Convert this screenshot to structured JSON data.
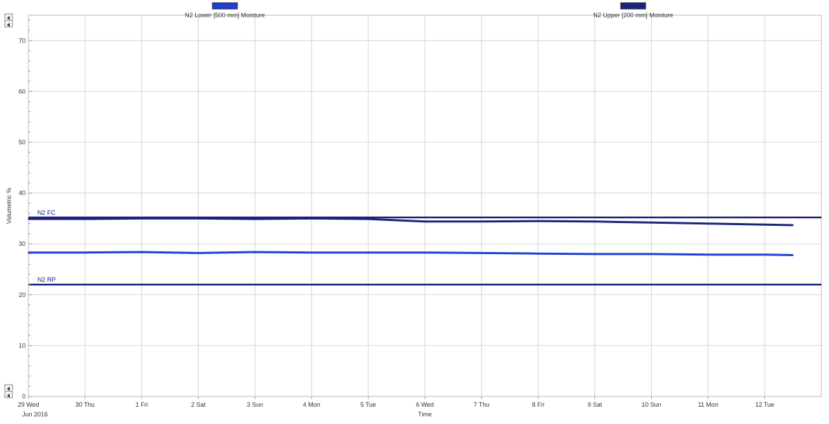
{
  "chart_data": {
    "type": "line",
    "title": "",
    "xlabel": "Time",
    "ylabel": "Volumetric %",
    "x_date_sublabel": "Jun 2016",
    "ylim": [
      0,
      75
    ],
    "yticks": [
      0,
      10,
      20,
      30,
      40,
      50,
      60,
      70
    ],
    "xlim": [
      "2016-06-29",
      "2016-07-13"
    ],
    "x_ticks": [
      {
        "date": "2016-06-29",
        "label": "29 Wed"
      },
      {
        "date": "2016-06-30",
        "label": "30 Thu"
      },
      {
        "date": "2016-07-01",
        "label": "1 Fri"
      },
      {
        "date": "2016-07-02",
        "label": "2 Sat"
      },
      {
        "date": "2016-07-03",
        "label": "3 Sun"
      },
      {
        "date": "2016-07-04",
        "label": "4 Mon"
      },
      {
        "date": "2016-07-05",
        "label": "5 Tue"
      },
      {
        "date": "2016-07-06",
        "label": "6 Wed"
      },
      {
        "date": "2016-07-07",
        "label": "7 Thu"
      },
      {
        "date": "2016-07-08",
        "label": "8 Fri"
      },
      {
        "date": "2016-07-09",
        "label": "9 Sat"
      },
      {
        "date": "2016-07-10",
        "label": "10 Sun"
      },
      {
        "date": "2016-07-11",
        "label": "11 Mon"
      },
      {
        "date": "2016-07-12",
        "label": "12 Tue"
      }
    ],
    "grid": true,
    "legend_position": "top",
    "series": [
      {
        "name": "N2 Lower  [500 mm] Moisture",
        "color": "#1f3fd6",
        "x": [
          "2016-06-29",
          "2016-06-30",
          "2016-07-01",
          "2016-07-02",
          "2016-07-03",
          "2016-07-04",
          "2016-07-05",
          "2016-07-06",
          "2016-07-07",
          "2016-07-08",
          "2016-07-09",
          "2016-07-10",
          "2016-07-11",
          "2016-07-12",
          "2016-07-12 12:00"
        ],
        "y": [
          28.3,
          28.3,
          28.4,
          28.2,
          28.4,
          28.3,
          28.3,
          28.3,
          28.2,
          28.1,
          28.0,
          28.0,
          27.9,
          27.9,
          27.8
        ]
      },
      {
        "name": "N2 Upper  [200 mm] Moisture",
        "color": "#1a237e",
        "x": [
          "2016-06-29",
          "2016-06-30",
          "2016-07-01",
          "2016-07-02",
          "2016-07-03",
          "2016-07-04",
          "2016-07-05",
          "2016-07-06",
          "2016-07-07",
          "2016-07-08",
          "2016-07-09",
          "2016-07-10",
          "2016-07-11",
          "2016-07-12",
          "2016-07-12 12:00"
        ],
        "y": [
          34.9,
          34.9,
          35.0,
          35.0,
          34.9,
          35.0,
          34.9,
          34.4,
          34.4,
          34.5,
          34.4,
          34.2,
          34.0,
          33.8,
          33.7
        ]
      }
    ],
    "reference_lines": [
      {
        "label": "N2 FC",
        "value": 35.2,
        "color": "#1a237e"
      },
      {
        "label": "N2 RP",
        "value": 22.0,
        "color": "#1a237e"
      }
    ]
  }
}
